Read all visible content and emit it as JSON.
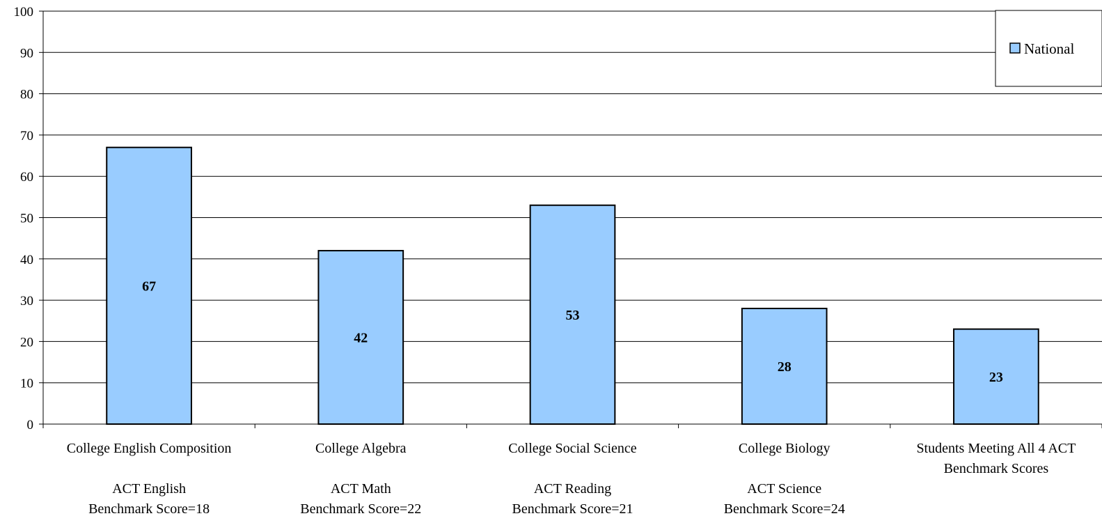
{
  "chart_data": {
    "type": "bar",
    "categories": [
      {
        "lines": [
          "College English Composition",
          "",
          "ACT English",
          "Benchmark Score=18"
        ]
      },
      {
        "lines": [
          "College Algebra",
          "",
          "ACT Math",
          "Benchmark Score=22"
        ]
      },
      {
        "lines": [
          "College Social Science",
          "",
          "ACT Reading",
          "Benchmark Score=21"
        ]
      },
      {
        "lines": [
          "College Biology",
          "",
          "ACT Science",
          "Benchmark Score=24"
        ]
      },
      {
        "lines": [
          "Students Meeting All 4 ACT",
          "Benchmark Scores"
        ]
      }
    ],
    "series": [
      {
        "name": "National",
        "values": [
          67,
          42,
          53,
          28,
          23
        ],
        "color": "#99ccff"
      }
    ],
    "ylim": [
      0,
      100
    ],
    "yticks": [
      "0",
      "10",
      "20",
      "30",
      "40",
      "50",
      "60",
      "70",
      "80",
      "90",
      "100"
    ],
    "grid": true,
    "legend_position": "top-right",
    "title": "",
    "xlabel": "",
    "ylabel": ""
  }
}
